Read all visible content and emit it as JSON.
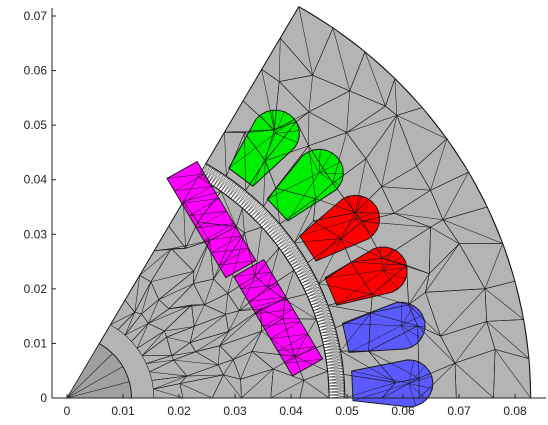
{
  "figure": {
    "type": "fem-mesh-plot",
    "description_tags": [
      "motor-cross-section",
      "triangular-mesh",
      "quarter-section"
    ]
  },
  "axes": {
    "x": {
      "range": [
        0,
        0.083
      ],
      "ticks": [
        0,
        0.01,
        0.02,
        0.03,
        0.04,
        0.05,
        0.06,
        0.07,
        0.08
      ],
      "tick_labels": [
        "0",
        "0.01",
        "0.02",
        "0.03",
        "0.04",
        "0.05",
        "0.06",
        "0.07",
        "0.08"
      ]
    },
    "y": {
      "range": [
        0,
        0.0715
      ],
      "ticks": [
        0,
        0.01,
        0.02,
        0.03,
        0.04,
        0.05,
        0.06,
        0.07
      ],
      "tick_labels": [
        "0",
        "0.01",
        "0.02",
        "0.03",
        "0.04",
        "0.05",
        "0.06",
        "0.07"
      ]
    },
    "grid": false,
    "box": "left-bottom"
  },
  "geometry": {
    "sector_angle_deg": [
      0,
      60
    ],
    "stator_outer_radius": 0.0828,
    "airgap_outer_radius": 0.0496,
    "rotor_outer_radius": 0.0468,
    "rotor_inner_radius": 0.0115,
    "slot_inner_radius": 0.051,
    "slot_outer_radius": 0.0654,
    "slot_half_width": 0.0032,
    "slot_angles_deg": [
      52.5,
      42.5,
      32.5,
      22.5,
      12.5,
      2.5
    ],
    "magnet_centers": [
      [
        0.0258,
        0.0327
      ],
      [
        0.0377,
        0.0147
      ]
    ],
    "magnet_direction": [
      0.5,
      -0.866
    ],
    "magnet_half_length": 0.0105,
    "magnet_half_width": 0.0031
  },
  "colors": {
    "iron": "#b4b4b4",
    "iron_dark": "#a0a0a0",
    "mesh": "#1a1a1a",
    "airgap": "#ffffff",
    "magnet": "#ff00ff",
    "phase_a": "#00ee00",
    "phase_b": "#ff0000",
    "phase_c": "#5a5aff",
    "axis": "#222222"
  },
  "slots": [
    {
      "angle_deg": 52.5,
      "phase": "phase_a"
    },
    {
      "angle_deg": 42.5,
      "phase": "phase_a"
    },
    {
      "angle_deg": 32.5,
      "phase": "phase_b"
    },
    {
      "angle_deg": 22.5,
      "phase": "phase_b"
    },
    {
      "angle_deg": 12.5,
      "phase": "phase_c"
    },
    {
      "angle_deg": 2.5,
      "phase": "phase_c"
    }
  ]
}
